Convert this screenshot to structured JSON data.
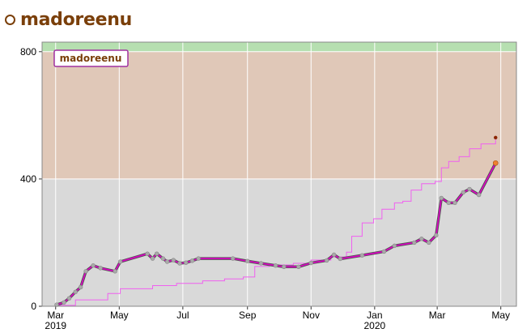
{
  "header": {
    "title": "madoreenu"
  },
  "chart_data": {
    "type": "line",
    "title": "madoreenu",
    "xlabel": "",
    "ylabel": "",
    "ylim": [
      0,
      830
    ],
    "x_axis": {
      "range": [
        "2019-02-16",
        "2020-05-16"
      ],
      "ticks": [
        {
          "date": "2019-03-01",
          "label": "Mar",
          "sublabel": "2019"
        },
        {
          "date": "2019-05-01",
          "label": "May",
          "sublabel": ""
        },
        {
          "date": "2019-07-01",
          "label": "Jul",
          "sublabel": ""
        },
        {
          "date": "2019-09-01",
          "label": "Sep",
          "sublabel": ""
        },
        {
          "date": "2019-11-01",
          "label": "Nov",
          "sublabel": ""
        },
        {
          "date": "2020-01-01",
          "label": "Jan",
          "sublabel": "2020"
        },
        {
          "date": "2020-03-01",
          "label": "Mar",
          "sublabel": ""
        },
        {
          "date": "2020-05-01",
          "label": "May",
          "sublabel": ""
        }
      ]
    },
    "y_ticks": [
      {
        "value": 0,
        "label": "0"
      },
      {
        "value": 400,
        "label": "400"
      },
      {
        "value": 800,
        "label": "800"
      }
    ],
    "grid": true,
    "legend": {
      "position": "top-left",
      "entries": [
        "madoreenu"
      ]
    },
    "bands": [
      {
        "from": 0,
        "to": 400,
        "color": "#d9d9d9"
      },
      {
        "from": 400,
        "to": 800,
        "color": "#e0c8b8"
      },
      {
        "from": 800,
        "to": 830,
        "color": "#b6dfb0"
      }
    ],
    "colors": {
      "rating_line": "#e000c8",
      "rating_outline": "#555555",
      "marker": "#aaaaaa",
      "peak_line": "#f060f0",
      "current_marker": "#f08030",
      "peak_marker": "#8b2500",
      "grid": "#ffffff",
      "legend_border": "#a030a0"
    },
    "series": [
      {
        "name": "madoreenu",
        "style": "rating",
        "points": [
          [
            "2019-03-02",
            5
          ],
          [
            "2019-03-09",
            12
          ],
          [
            "2019-03-14",
            25
          ],
          [
            "2019-03-20",
            45
          ],
          [
            "2019-03-25",
            60
          ],
          [
            "2019-03-30",
            110
          ],
          [
            "2019-04-06",
            128
          ],
          [
            "2019-04-13",
            120
          ],
          [
            "2019-04-27",
            110
          ],
          [
            "2019-05-02",
            140
          ],
          [
            "2019-05-28",
            165
          ],
          [
            "2019-06-02",
            150
          ],
          [
            "2019-06-06",
            165
          ],
          [
            "2019-06-12",
            150
          ],
          [
            "2019-06-16",
            140
          ],
          [
            "2019-06-22",
            145
          ],
          [
            "2019-06-28",
            135
          ],
          [
            "2019-07-04",
            137
          ],
          [
            "2019-07-10",
            143
          ],
          [
            "2019-07-16",
            150
          ],
          [
            "2019-08-18",
            150
          ],
          [
            "2019-09-01",
            142
          ],
          [
            "2019-09-14",
            135
          ],
          [
            "2019-09-28",
            128
          ],
          [
            "2019-10-06",
            124
          ],
          [
            "2019-10-20",
            124
          ],
          [
            "2019-11-01",
            136
          ],
          [
            "2019-11-16",
            144
          ],
          [
            "2019-11-23",
            162
          ],
          [
            "2019-11-29",
            149
          ],
          [
            "2019-12-20",
            160
          ],
          [
            "2020-01-10",
            172
          ],
          [
            "2020-01-20",
            190
          ],
          [
            "2020-02-08",
            200
          ],
          [
            "2020-02-15",
            212
          ],
          [
            "2020-02-22",
            200
          ],
          [
            "2020-02-29",
            223
          ],
          [
            "2020-03-05",
            340
          ],
          [
            "2020-03-12",
            325
          ],
          [
            "2020-03-18",
            325
          ],
          [
            "2020-03-26",
            358
          ],
          [
            "2020-04-01",
            368
          ],
          [
            "2020-04-10",
            350
          ],
          [
            "2020-04-26",
            450
          ]
        ]
      },
      {
        "name": "",
        "style": "peak",
        "points": [
          [
            "2019-03-02",
            3
          ],
          [
            "2019-03-20",
            20
          ],
          [
            "2019-04-20",
            40
          ],
          [
            "2019-05-02",
            55
          ],
          [
            "2019-06-02",
            65
          ],
          [
            "2019-06-25",
            72
          ],
          [
            "2019-07-20",
            80
          ],
          [
            "2019-08-10",
            86
          ],
          [
            "2019-08-28",
            92
          ],
          [
            "2019-09-08",
            125
          ],
          [
            "2019-09-22",
            130
          ],
          [
            "2019-10-15",
            135
          ],
          [
            "2019-11-01",
            145
          ],
          [
            "2019-11-20",
            155
          ],
          [
            "2019-12-05",
            170
          ],
          [
            "2019-12-10",
            220
          ],
          [
            "2019-12-20",
            262
          ],
          [
            "2019-12-31",
            275
          ],
          [
            "2020-01-08",
            305
          ],
          [
            "2020-01-20",
            325
          ],
          [
            "2020-01-28",
            330
          ],
          [
            "2020-02-05",
            365
          ],
          [
            "2020-02-15",
            385
          ],
          [
            "2020-02-28",
            392
          ],
          [
            "2020-03-05",
            435
          ],
          [
            "2020-03-12",
            455
          ],
          [
            "2020-03-22",
            470
          ],
          [
            "2020-04-01",
            495
          ],
          [
            "2020-04-12",
            510
          ],
          [
            "2020-04-26",
            530
          ]
        ]
      }
    ]
  }
}
